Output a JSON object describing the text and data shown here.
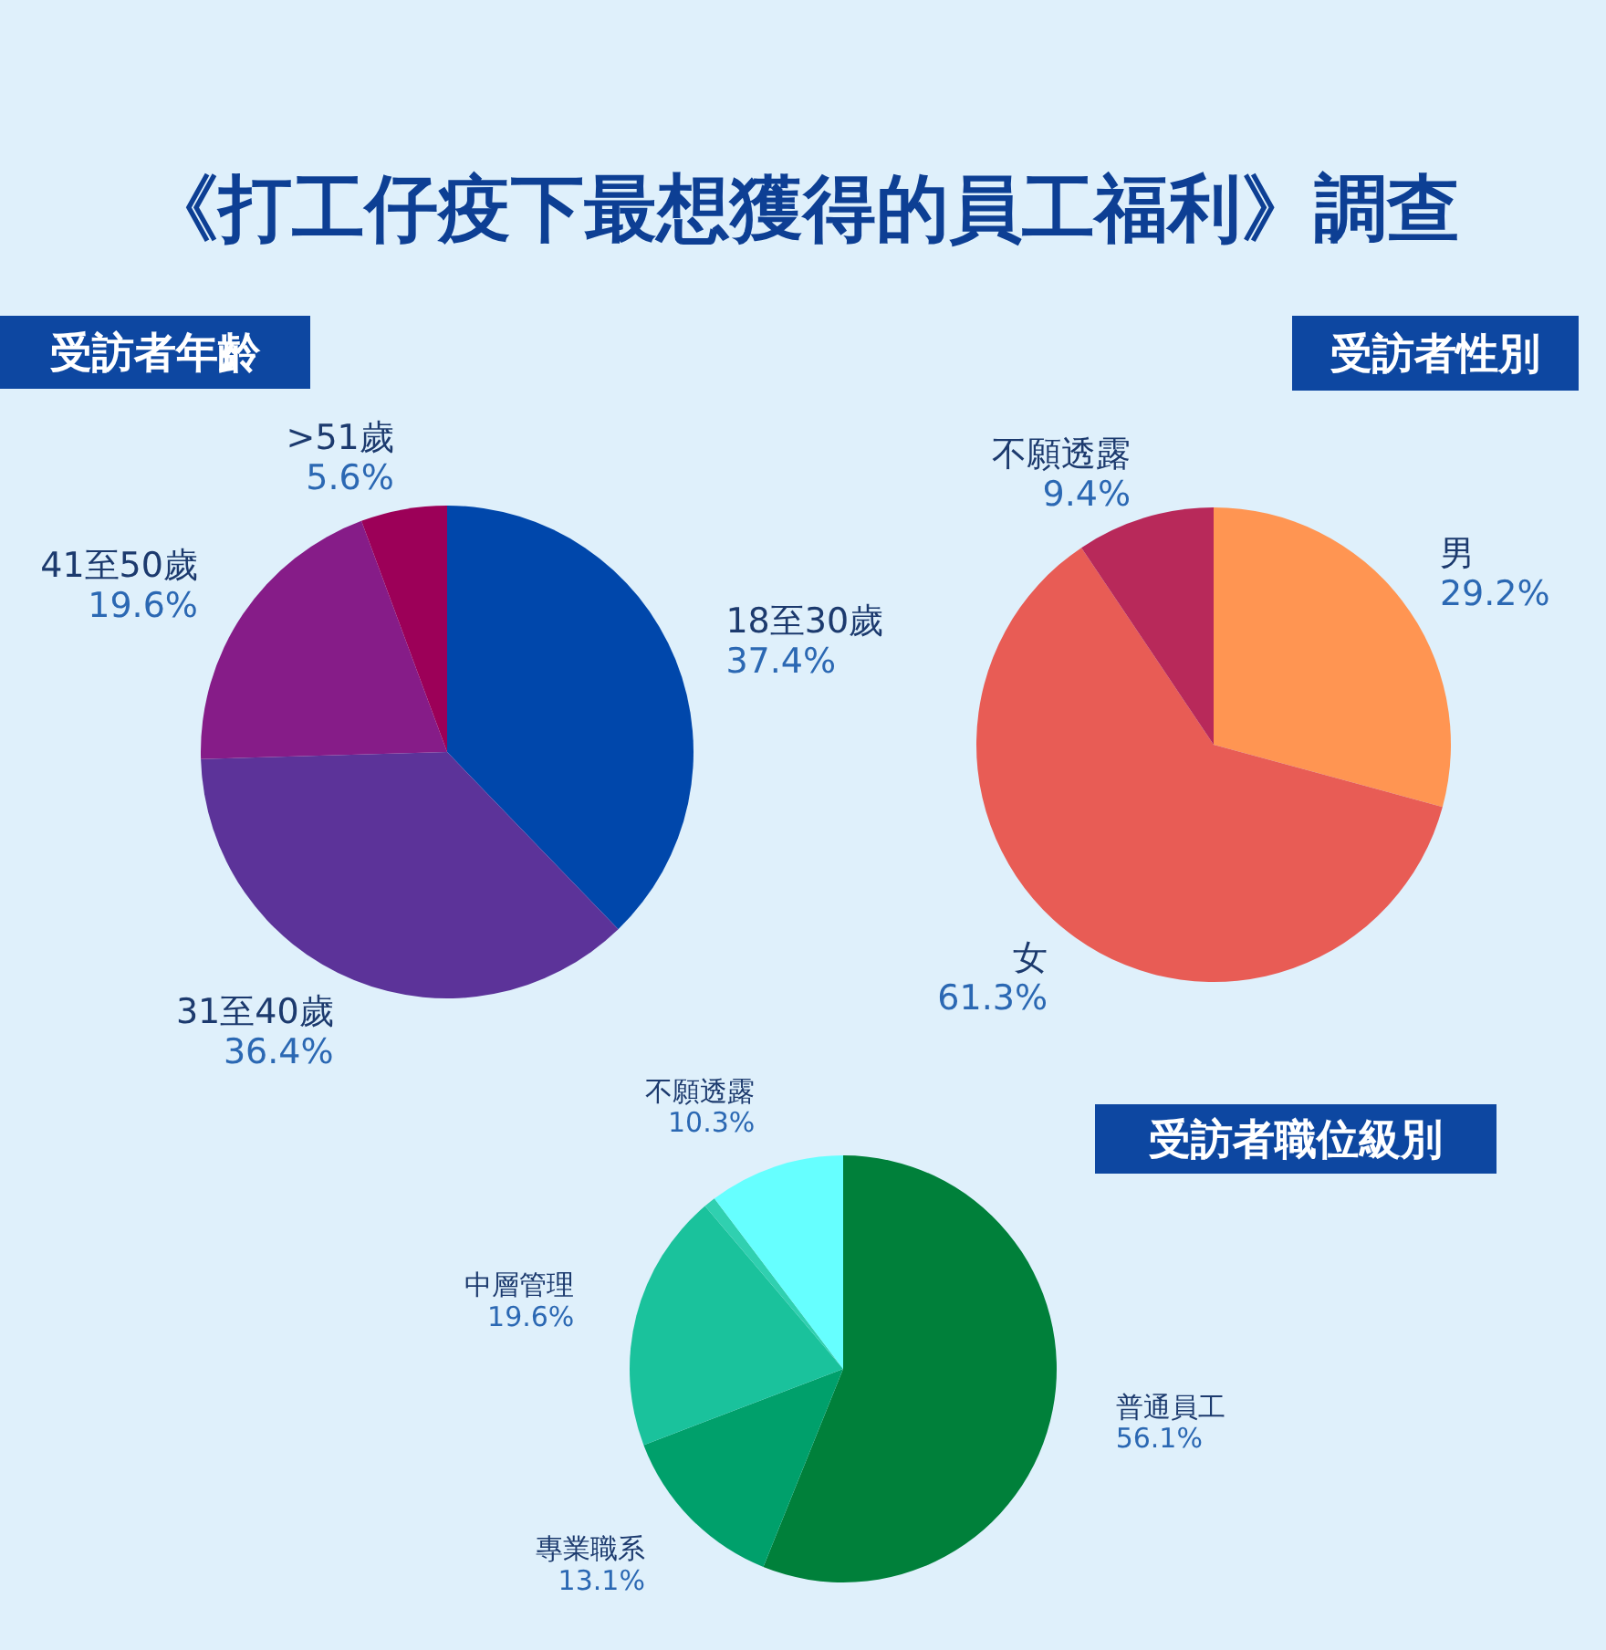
{
  "chart_data": [
    {
      "type": "pie",
      "title": "《打工仔疫下最想獲得的員工福利》調查",
      "subtitle": "受訪者年齡",
      "categories": [
        "18至30歲",
        "31至40歲",
        "41至50歲",
        ">51歲"
      ],
      "values": [
        37.4,
        36.4,
        19.6,
        5.6
      ],
      "value_labels": [
        "37.4%",
        "36.4%",
        "19.6%",
        "5.6%"
      ],
      "colors": [
        "#0047ab",
        "#5c3399",
        "#861c88",
        "#9c0058"
      ]
    },
    {
      "type": "pie",
      "subtitle": "受訪者性別",
      "categories": [
        "男",
        "女",
        "不願透露"
      ],
      "values": [
        29.2,
        61.3,
        9.4
      ],
      "value_labels": [
        "29.2%",
        "61.3%",
        "9.4%"
      ],
      "colors": [
        "#ff9552",
        "#e85c55",
        "#b8295a"
      ]
    },
    {
      "type": "pie",
      "subtitle": "受訪者職位級別",
      "categories": [
        "普通員工",
        "專業職系",
        "中層管理",
        null,
        "不願透露"
      ],
      "values": [
        56.1,
        13.1,
        19.6,
        0.9,
        10.3
      ],
      "value_labels": [
        "56.1%",
        "13.1%",
        "19.6%",
        null,
        "10.3%"
      ],
      "colors": [
        "#00803a",
        "#00a06b",
        "#1ac29c",
        "#30d0b0",
        "#66ffff"
      ]
    }
  ]
}
